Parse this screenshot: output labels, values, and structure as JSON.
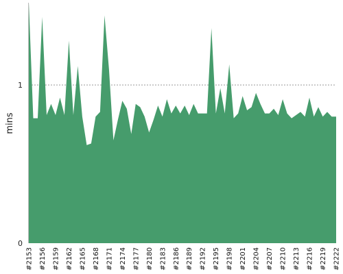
{
  "chart_data": {
    "type": "area",
    "ylabel": "mins",
    "ylim": [
      0,
      1.52
    ],
    "y_ticks": [
      0,
      1
    ],
    "gridline_at": 1,
    "colors": {
      "fill": "#469c6c",
      "grid": "#888888",
      "axis": "#bbbbbb"
    },
    "x": [
      "#2153",
      "#2154",
      "#2155",
      "#2156",
      "#2157",
      "#2158",
      "#2159",
      "#2160",
      "#2161",
      "#2162",
      "#2163",
      "#2164",
      "#2165",
      "#2166",
      "#2167",
      "#2168",
      "#2169",
      "#2170",
      "#2171",
      "#2172",
      "#2173",
      "#2174",
      "#2175",
      "#2176",
      "#2177",
      "#2178",
      "#2179",
      "#2180",
      "#2181",
      "#2182",
      "#2183",
      "#2184",
      "#2185",
      "#2186",
      "#2187",
      "#2188",
      "#2189",
      "#2190",
      "#2191",
      "#2192",
      "#2193",
      "#2194",
      "#2195",
      "#2196",
      "#2197",
      "#2198",
      "#2199",
      "#2200",
      "#2201",
      "#2202",
      "#2203",
      "#2204",
      "#2205",
      "#2206",
      "#2207",
      "#2208",
      "#2209",
      "#2210",
      "#2211",
      "#2212",
      "#2213",
      "#2214",
      "#2215",
      "#2216",
      "#2217",
      "#2218",
      "#2219",
      "#2220",
      "#2221",
      "#2222"
    ],
    "values": [
      1.52,
      0.79,
      0.79,
      1.43,
      0.81,
      0.88,
      0.81,
      0.92,
      0.81,
      1.28,
      0.81,
      1.12,
      0.8,
      0.62,
      0.63,
      0.8,
      0.83,
      1.44,
      1.1,
      0.65,
      0.78,
      0.9,
      0.85,
      0.69,
      0.88,
      0.86,
      0.8,
      0.7,
      0.78,
      0.87,
      0.8,
      0.91,
      0.82,
      0.87,
      0.82,
      0.87,
      0.81,
      0.88,
      0.82,
      0.82,
      0.82,
      1.36,
      0.82,
      0.98,
      0.82,
      1.13,
      0.79,
      0.82,
      0.93,
      0.84,
      0.86,
      0.95,
      0.88,
      0.82,
      0.82,
      0.85,
      0.81,
      0.91,
      0.82,
      0.79,
      0.81,
      0.83,
      0.8,
      0.92,
      0.8,
      0.86,
      0.8,
      0.83,
      0.8,
      0.8
    ],
    "x_tick_labels": [
      "#2153",
      "#2156",
      "#2159",
      "#2162",
      "#2165",
      "#2168",
      "#2171",
      "#2174",
      "#2177",
      "#2180",
      "#2183",
      "#2186",
      "#2189",
      "#2192",
      "#2195",
      "#2198",
      "#2201",
      "#2204",
      "#2207",
      "#2210",
      "#2213",
      "#2216",
      "#2219",
      "#2222"
    ]
  }
}
